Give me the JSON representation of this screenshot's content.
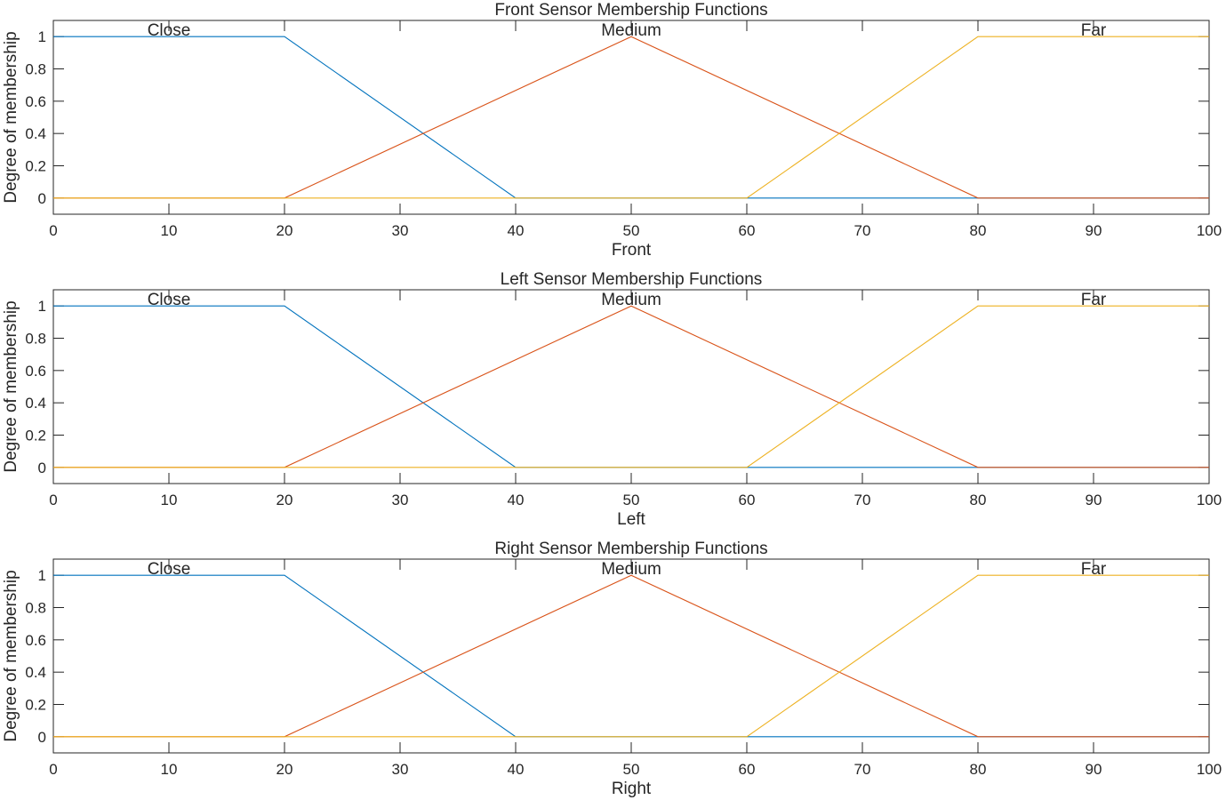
{
  "chart_data": [
    {
      "type": "line",
      "title": "Front Sensor Membership Functions",
      "xlabel": "Front",
      "ylabel": "Degree of membership",
      "xlim": [
        0,
        100
      ],
      "ylim": [
        -0.1,
        1.1
      ],
      "xticks": [
        "0",
        "10",
        "20",
        "30",
        "40",
        "50",
        "60",
        "70",
        "80",
        "90",
        "100"
      ],
      "yticks": [
        "0",
        "0.2",
        "0.4",
        "0.6",
        "0.8",
        "1"
      ],
      "series": [
        {
          "name": "Close",
          "color": "#0072BD",
          "x": [
            0,
            20,
            40,
            100
          ],
          "values": [
            1,
            1,
            0,
            0
          ]
        },
        {
          "name": "Medium",
          "color": "#D95319",
          "x": [
            0,
            20,
            50,
            80,
            100
          ],
          "values": [
            0,
            0,
            1,
            0,
            0
          ]
        },
        {
          "name": "Far",
          "color": "#EDB120",
          "x": [
            0,
            60,
            80,
            100
          ],
          "values": [
            0,
            0,
            1,
            1
          ]
        }
      ],
      "annotations": [
        {
          "text": "Close",
          "x": 10
        },
        {
          "text": "Medium",
          "x": 50
        },
        {
          "text": "Far",
          "x": 90
        }
      ]
    },
    {
      "type": "line",
      "title": "Left Sensor Membership Functions",
      "xlabel": "Left",
      "ylabel": "Degree of membership",
      "xlim": [
        0,
        100
      ],
      "ylim": [
        -0.1,
        1.1
      ],
      "xticks": [
        "0",
        "10",
        "20",
        "30",
        "40",
        "50",
        "60",
        "70",
        "80",
        "90",
        "100"
      ],
      "yticks": [
        "0",
        "0.2",
        "0.4",
        "0.6",
        "0.8",
        "1"
      ],
      "series": [
        {
          "name": "Close",
          "color": "#0072BD",
          "x": [
            0,
            20,
            40,
            100
          ],
          "values": [
            1,
            1,
            0,
            0
          ]
        },
        {
          "name": "Medium",
          "color": "#D95319",
          "x": [
            0,
            20,
            50,
            80,
            100
          ],
          "values": [
            0,
            0,
            1,
            0,
            0
          ]
        },
        {
          "name": "Far",
          "color": "#EDB120",
          "x": [
            0,
            60,
            80,
            100
          ],
          "values": [
            0,
            0,
            1,
            1
          ]
        }
      ],
      "annotations": [
        {
          "text": "Close",
          "x": 10
        },
        {
          "text": "Medium",
          "x": 50
        },
        {
          "text": "Far",
          "x": 90
        }
      ]
    },
    {
      "type": "line",
      "title": "Right Sensor Membership Functions",
      "xlabel": "Right",
      "ylabel": "Degree of membership",
      "xlim": [
        0,
        100
      ],
      "ylim": [
        -0.1,
        1.1
      ],
      "xticks": [
        "0",
        "10",
        "20",
        "30",
        "40",
        "50",
        "60",
        "70",
        "80",
        "90",
        "100"
      ],
      "yticks": [
        "0",
        "0.2",
        "0.4",
        "0.6",
        "0.8",
        "1"
      ],
      "series": [
        {
          "name": "Close",
          "color": "#0072BD",
          "x": [
            0,
            20,
            40,
            100
          ],
          "values": [
            1,
            1,
            0,
            0
          ]
        },
        {
          "name": "Medium",
          "color": "#D95319",
          "x": [
            0,
            20,
            50,
            80,
            100
          ],
          "values": [
            0,
            0,
            1,
            0,
            0
          ]
        },
        {
          "name": "Far",
          "color": "#EDB120",
          "x": [
            0,
            60,
            80,
            100
          ],
          "values": [
            0,
            0,
            1,
            1
          ]
        }
      ],
      "annotations": [
        {
          "text": "Close",
          "x": 10
        },
        {
          "text": "Medium",
          "x": 50
        },
        {
          "text": "Far",
          "x": 90
        }
      ]
    }
  ]
}
